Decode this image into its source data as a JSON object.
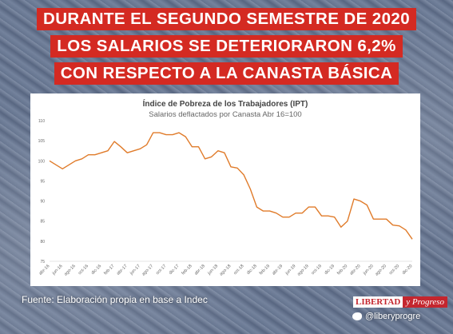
{
  "headline": [
    "DURANTE EL SEGUNDO SEMESTRE DE 2020",
    "LOS SALARIOS SE DETERIORARON 6,2%",
    "CON RESPECTO A LA CANASTA BÁSICA"
  ],
  "source": "Fuente: Elaboración propia en base a Indec",
  "logo": {
    "part1": "LIBERTAD",
    "part2": "y Progreso"
  },
  "twitter": {
    "handle": "@liberyprogre",
    "icon": "twitter-bird-icon"
  },
  "colors": {
    "headline_bg": "#d42a22",
    "line": "#e07b2a",
    "logo_red": "#c4262e"
  },
  "chart_data": {
    "type": "line",
    "title": "Índice de Pobreza de los Trabajadores (IPT)",
    "subtitle": "Salarios deflactados por Canasta Abr 16=100",
    "xlabel": "",
    "ylabel": "",
    "ylim": [
      75,
      110
    ],
    "yticks": [
      75,
      80,
      85,
      90,
      95,
      100,
      105,
      110
    ],
    "grid": false,
    "tick_labels": [
      "abr-16",
      "jun-16",
      "ago-16",
      "oct-16",
      "dic-16",
      "feb-17",
      "abr-17",
      "jun-17",
      "ago-17",
      "oct-17",
      "dic-17",
      "feb-18",
      "abr-18",
      "jun-18",
      "ago-18",
      "oct-18",
      "dic-18",
      "feb-19",
      "abr-19",
      "jun-19",
      "ago-19",
      "oct-19",
      "dic-19",
      "feb-20",
      "abr-20",
      "jun-20",
      "ago-20",
      "oct-20",
      "dic-20"
    ],
    "x": [
      "abr-16",
      "may-16",
      "jun-16",
      "jul-16",
      "ago-16",
      "sep-16",
      "oct-16",
      "nov-16",
      "dic-16",
      "ene-17",
      "feb-17",
      "mar-17",
      "abr-17",
      "may-17",
      "jun-17",
      "jul-17",
      "ago-17",
      "sep-17",
      "oct-17",
      "nov-17",
      "dic-17",
      "ene-18",
      "feb-18",
      "mar-18",
      "abr-18",
      "may-18",
      "jun-18",
      "jul-18",
      "ago-18",
      "sep-18",
      "oct-18",
      "nov-18",
      "dic-18",
      "ene-19",
      "feb-19",
      "mar-19",
      "abr-19",
      "may-19",
      "jun-19",
      "jul-19",
      "ago-19",
      "sep-19",
      "oct-19",
      "nov-19",
      "dic-19",
      "ene-20",
      "feb-20",
      "mar-20",
      "abr-20",
      "may-20",
      "jun-20",
      "jul-20",
      "ago-20",
      "sep-20",
      "oct-20",
      "nov-20",
      "dic-20"
    ],
    "series": [
      {
        "values": [
          100,
          99,
          98,
          99,
          100,
          100.5,
          101.5,
          101.5,
          102,
          102.5,
          104.8,
          103.5,
          102,
          102.5,
          103,
          104,
          107,
          107,
          106.5,
          106.5,
          107,
          106,
          103.5,
          103.5,
          100.5,
          101,
          102.5,
          102,
          98.5,
          98.2,
          96.5,
          93,
          88.5,
          87.5,
          87.5,
          87,
          86,
          86,
          87,
          87,
          88.5,
          88.5,
          86.3,
          86.3,
          86,
          83.5,
          85,
          90.5,
          90,
          89,
          85.5,
          85.5,
          85.5,
          84,
          83.8,
          82.8,
          80.5
        ]
      }
    ]
  }
}
